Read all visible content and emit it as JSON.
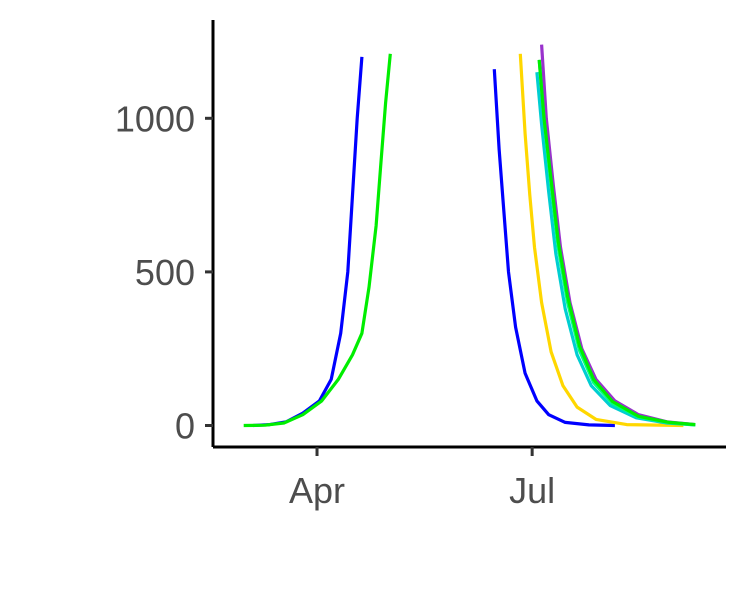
{
  "chart_data": {
    "type": "line",
    "title": "",
    "xlabel": "",
    "ylabel": "",
    "x_type": "date",
    "xlim": [
      "2020-02-17",
      "2020-09-21"
    ],
    "ylim": [
      -70,
      1320
    ],
    "x_ticks": [
      {
        "value": "2020-04-01",
        "label": "Apr"
      },
      {
        "value": "2020-07-01",
        "label": "Jul"
      }
    ],
    "y_ticks": [
      {
        "value": 0,
        "label": "0"
      },
      {
        "value": 500,
        "label": "500"
      },
      {
        "value": 1000,
        "label": "1000"
      }
    ],
    "grid": false,
    "legend": "none",
    "series": [
      {
        "color": "#0000ff",
        "segments": [
          [
            [
              "2020-03-05",
              0
            ],
            [
              "2020-03-12",
              3
            ],
            [
              "2020-03-19",
              12
            ],
            [
              "2020-03-26",
              40
            ],
            [
              "2020-04-02",
              80
            ],
            [
              "2020-04-07",
              150
            ],
            [
              "2020-04-11",
              300
            ],
            [
              "2020-04-14",
              500
            ],
            [
              "2020-04-16",
              750
            ],
            [
              "2020-04-18",
              1000
            ],
            [
              "2020-04-20",
              1200
            ]
          ],
          [
            [
              "2020-06-15",
              1160
            ],
            [
              "2020-06-17",
              900
            ],
            [
              "2020-06-19",
              700
            ],
            [
              "2020-06-21",
              500
            ],
            [
              "2020-06-24",
              320
            ],
            [
              "2020-06-28",
              170
            ],
            [
              "2020-07-03",
              80
            ],
            [
              "2020-07-08",
              35
            ],
            [
              "2020-07-15",
              10
            ],
            [
              "2020-07-25",
              2
            ],
            [
              "2020-08-05",
              0
            ]
          ]
        ]
      },
      {
        "color": "#ffd700",
        "segments": [
          [
            [
              "2020-06-26",
              1210
            ],
            [
              "2020-06-28",
              950
            ],
            [
              "2020-06-30",
              750
            ],
            [
              "2020-07-02",
              580
            ],
            [
              "2020-07-05",
              400
            ],
            [
              "2020-07-09",
              240
            ],
            [
              "2020-07-14",
              130
            ],
            [
              "2020-07-20",
              60
            ],
            [
              "2020-07-28",
              20
            ],
            [
              "2020-08-10",
              3
            ],
            [
              "2020-09-03",
              0
            ]
          ]
        ]
      },
      {
        "color": "#9932cc",
        "segments": [
          [
            [
              "2020-07-05",
              1240
            ],
            [
              "2020-07-07",
              1000
            ],
            [
              "2020-07-10",
              780
            ],
            [
              "2020-07-13",
              580
            ],
            [
              "2020-07-17",
              400
            ],
            [
              "2020-07-22",
              250
            ],
            [
              "2020-07-28",
              150
            ],
            [
              "2020-08-05",
              80
            ],
            [
              "2020-08-15",
              35
            ],
            [
              "2020-08-27",
              12
            ],
            [
              "2020-09-08",
              3
            ]
          ]
        ]
      },
      {
        "color": "#00ced1",
        "segments": [
          [
            [
              "2020-07-03",
              1150
            ],
            [
              "2020-07-05",
              980
            ],
            [
              "2020-07-08",
              760
            ],
            [
              "2020-07-11",
              560
            ],
            [
              "2020-07-15",
              380
            ],
            [
              "2020-07-20",
              230
            ],
            [
              "2020-07-26",
              130
            ],
            [
              "2020-08-03",
              65
            ],
            [
              "2020-08-14",
              25
            ],
            [
              "2020-08-27",
              8
            ],
            [
              "2020-09-08",
              2
            ]
          ]
        ]
      },
      {
        "color": "#00ff7f",
        "segments": [
          [
            [
              "2020-07-04",
              1190
            ],
            [
              "2020-07-06",
              1000
            ],
            [
              "2020-07-09",
              780
            ],
            [
              "2020-07-12",
              580
            ],
            [
              "2020-07-16",
              400
            ],
            [
              "2020-07-21",
              245
            ],
            [
              "2020-07-27",
              140
            ],
            [
              "2020-08-04",
              72
            ],
            [
              "2020-08-15",
              28
            ],
            [
              "2020-08-28",
              9
            ],
            [
              "2020-09-08",
              2
            ]
          ]
        ]
      },
      {
        "color": "#00ee00",
        "segments": [
          [
            [
              "2020-03-01",
              0
            ],
            [
              "2020-03-10",
              1
            ],
            [
              "2020-03-18",
              8
            ],
            [
              "2020-03-26",
              35
            ],
            [
              "2020-04-03",
              80
            ],
            [
              "2020-04-10",
              150
            ],
            [
              "2020-04-16",
              230
            ],
            [
              "2020-04-20",
              300
            ],
            [
              "2020-04-23",
              450
            ],
            [
              "2020-04-26",
              650
            ],
            [
              "2020-04-28",
              850
            ],
            [
              "2020-04-30",
              1050
            ],
            [
              "2020-05-02",
              1210
            ]
          ],
          [
            [
              "2020-07-04",
              1190
            ],
            [
              "2020-07-06",
              1000
            ],
            [
              "2020-07-09",
              800
            ],
            [
              "2020-07-12",
              600
            ],
            [
              "2020-07-16",
              420
            ],
            [
              "2020-07-21",
              260
            ],
            [
              "2020-07-27",
              150
            ],
            [
              "2020-08-04",
              78
            ],
            [
              "2020-08-15",
              30
            ],
            [
              "2020-08-28",
              10
            ],
            [
              "2020-09-08",
              3
            ]
          ]
        ]
      }
    ]
  }
}
